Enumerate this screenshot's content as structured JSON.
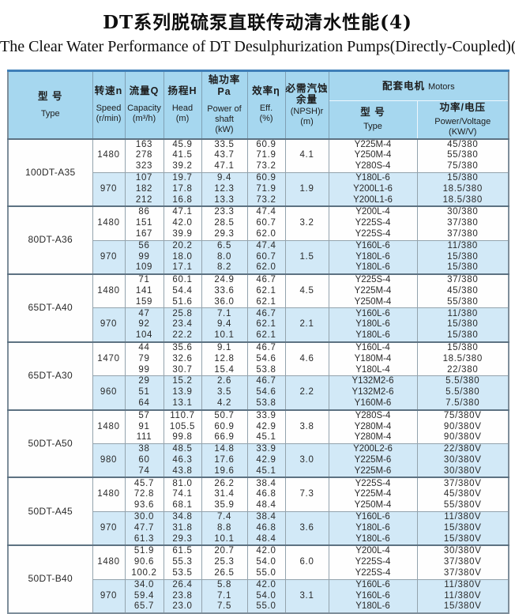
{
  "page": {
    "title_zh": "DT系列脱硫泵直联传动清水性能(4)",
    "title_en": "The Clear Water Performance of DT Desulphurization Pumps(Directly-Coupled)(4)"
  },
  "colors": {
    "table_top_border": "#3f7fb8",
    "header_bg": "#a6d7ef",
    "alt_row_bg": "#d2e9f7",
    "grid_line": "#93a3ad"
  },
  "table": {
    "header": {
      "type": {
        "zh": "型 号",
        "en": "Type"
      },
      "speed": {
        "zh": "转速n",
        "en": "Speed",
        "unit": "(r/min)"
      },
      "capacity": {
        "zh": "流量Q",
        "en": "Capacity",
        "unit": "(m³/h)"
      },
      "head": {
        "zh": "扬程H",
        "en": "Head",
        "unit": "(m)"
      },
      "power": {
        "zh": "轴功率Pa",
        "en": "Power of",
        "en2": "shaft",
        "unit": "(kW)"
      },
      "eff": {
        "zh": "效率η",
        "en": "Eff.",
        "unit": "(%)"
      },
      "npsh": {
        "zh1": "必需汽蚀",
        "zh2": "余量",
        "en": "(NPSH)r",
        "unit": "(m)"
      },
      "motors": {
        "zh": "配套电机",
        "en": "Motors"
      },
      "motor_type": {
        "zh": "型 号",
        "en": "Type"
      },
      "motor_power": {
        "zh": "功率/电压",
        "en": "Power/Voltage",
        "unit": "(KW/V)"
      }
    },
    "groups": [
      {
        "model": "100DT-A35",
        "speeds": [
          {
            "speed": "1480",
            "npsh": "4.1",
            "rows": [
              {
                "q": "163",
                "h": "45.9",
                "p": "33.5",
                "eff": "60.9",
                "motor": "Y225M-4",
                "pv": "45/380"
              },
              {
                "q": "278",
                "h": "41.5",
                "p": "43.7",
                "eff": "71.9",
                "motor": "Y250M-4",
                "pv": "55/380"
              },
              {
                "q": "323",
                "h": "39.2",
                "p": "47.1",
                "eff": "73.2",
                "motor": "Y280S-4",
                "pv": "75/380"
              }
            ]
          },
          {
            "speed": "970",
            "npsh": "1.9",
            "rows": [
              {
                "q": "107",
                "h": "19.7",
                "p": "9.4",
                "eff": "60.9",
                "motor": "Y180L-6",
                "pv": "15/380"
              },
              {
                "q": "182",
                "h": "17.8",
                "p": "12.3",
                "eff": "71.9",
                "motor": "Y200L1-6",
                "pv": "18.5/380"
              },
              {
                "q": "212",
                "h": "16.8",
                "p": "13.3",
                "eff": "73.2",
                "motor": "Y200L1-6",
                "pv": "18.5/380"
              }
            ]
          }
        ]
      },
      {
        "model": "80DT-A36",
        "speeds": [
          {
            "speed": "1480",
            "npsh": "3.2",
            "rows": [
              {
                "q": "86",
                "h": "47.1",
                "p": "23.3",
                "eff": "47.4",
                "motor": "Y200L-4",
                "pv": "30/380"
              },
              {
                "q": "151",
                "h": "42.0",
                "p": "28.5",
                "eff": "60.7",
                "motor": "Y225S-4",
                "pv": "37/380"
              },
              {
                "q": "167",
                "h": "39.9",
                "p": "29.3",
                "eff": "62.0",
                "motor": "Y225S-4",
                "pv": "37/380"
              }
            ]
          },
          {
            "speed": "970",
            "npsh": "1.5",
            "rows": [
              {
                "q": "56",
                "h": "20.2",
                "p": "6.5",
                "eff": "47.4",
                "motor": "Y160L-6",
                "pv": "11/380"
              },
              {
                "q": "99",
                "h": "18.0",
                "p": "8.0",
                "eff": "60.7",
                "motor": "Y180L-6",
                "pv": "15/380"
              },
              {
                "q": "109",
                "h": "17.1",
                "p": "8.2",
                "eff": "62.0",
                "motor": "Y180L-6",
                "pv": "15/380"
              }
            ]
          }
        ]
      },
      {
        "model": "65DT-A40",
        "speeds": [
          {
            "speed": "1480",
            "npsh": "4.5",
            "rows": [
              {
                "q": "71",
                "h": "60.1",
                "p": "24.9",
                "eff": "46.7",
                "motor": "Y225S-4",
                "pv": "37/380"
              },
              {
                "q": "141",
                "h": "54.4",
                "p": "33.6",
                "eff": "62.1",
                "motor": "Y225M-4",
                "pv": "45/380"
              },
              {
                "q": "159",
                "h": "51.6",
                "p": "36.0",
                "eff": "62.1",
                "motor": "Y250M-4",
                "pv": "55/380"
              }
            ]
          },
          {
            "speed": "970",
            "npsh": "2.1",
            "rows": [
              {
                "q": "47",
                "h": "25.8",
                "p": "7.1",
                "eff": "46.7",
                "motor": "Y160L-6",
                "pv": "11/380"
              },
              {
                "q": "92",
                "h": "23.4",
                "p": "9.4",
                "eff": "62.1",
                "motor": "Y180L-6",
                "pv": "15/380"
              },
              {
                "q": "104",
                "h": "22.2",
                "p": "10.1",
                "eff": "62.1",
                "motor": "Y180L-6",
                "pv": "15/380"
              }
            ]
          }
        ]
      },
      {
        "model": "65DT-A30",
        "speeds": [
          {
            "speed": "1470",
            "npsh": "4.6",
            "rows": [
              {
                "q": "44",
                "h": "35.6",
                "p": "9.1",
                "eff": "46.7",
                "motor": "Y160L-4",
                "pv": "15/380"
              },
              {
                "q": "79",
                "h": "32.6",
                "p": "12.8",
                "eff": "54.6",
                "motor": "Y180M-4",
                "pv": "18.5/380"
              },
              {
                "q": "99",
                "h": "30.7",
                "p": "15.4",
                "eff": "53.8",
                "motor": "Y180L-4",
                "pv": "22/380"
              }
            ]
          },
          {
            "speed": "960",
            "npsh": "2.2",
            "rows": [
              {
                "q": "29",
                "h": "15.2",
                "p": "2.6",
                "eff": "46.7",
                "motor": "Y132M2-6",
                "pv": "5.5/380"
              },
              {
                "q": "51",
                "h": "13.9",
                "p": "3.5",
                "eff": "54.6",
                "motor": "Y132M2-6",
                "pv": "5.5/380"
              },
              {
                "q": "64",
                "h": "13.1",
                "p": "4.2",
                "eff": "53.8",
                "motor": "Y160M-6",
                "pv": "7.5/380"
              }
            ]
          }
        ]
      },
      {
        "model": "50DT-A50",
        "speeds": [
          {
            "speed": "1480",
            "npsh": "3.8",
            "rows": [
              {
                "q": "57",
                "h": "110.7",
                "p": "50.7",
                "eff": "33.9",
                "motor": "Y280S-4",
                "pv": "75/380V"
              },
              {
                "q": "91",
                "h": "105.5",
                "p": "60.9",
                "eff": "42.9",
                "motor": "Y280M-4",
                "pv": "90/380V"
              },
              {
                "q": "111",
                "h": "99.8",
                "p": "66.9",
                "eff": "45.1",
                "motor": "Y280M-4",
                "pv": "90/380V"
              }
            ]
          },
          {
            "speed": "980",
            "npsh": "3.0",
            "rows": [
              {
                "q": "38",
                "h": "48.5",
                "p": "14.8",
                "eff": "33.9",
                "motor": "Y200L2-6",
                "pv": "22/380V"
              },
              {
                "q": "60",
                "h": "46.3",
                "p": "17.6",
                "eff": "42.9",
                "motor": "Y225M-6",
                "pv": "30/380V"
              },
              {
                "q": "74",
                "h": "43.8",
                "p": "19.6",
                "eff": "45.1",
                "motor": "Y225M-6",
                "pv": "30/380V"
              }
            ]
          }
        ]
      },
      {
        "model": "50DT-A45",
        "speeds": [
          {
            "speed": "1480",
            "npsh": "7.3",
            "rows": [
              {
                "q": "45.7",
                "h": "81.0",
                "p": "26.2",
                "eff": "38.4",
                "motor": "Y225S-4",
                "pv": "37/380V"
              },
              {
                "q": "72.8",
                "h": "74.1",
                "p": "31.4",
                "eff": "46.8",
                "motor": "Y225M-4",
                "pv": "45/380V"
              },
              {
                "q": "93.6",
                "h": "68.1",
                "p": "35.9",
                "eff": "48.4",
                "motor": "Y250M-4",
                "pv": "55/380V"
              }
            ]
          },
          {
            "speed": "970",
            "npsh": "3.6",
            "rows": [
              {
                "q": "30.0",
                "h": "34.8",
                "p": "7.4",
                "eff": "38.4",
                "motor": "Y160L-6",
                "pv": "11/380V"
              },
              {
                "q": "47.7",
                "h": "31.8",
                "p": "8.8",
                "eff": "46.8",
                "motor": "Y180L-6",
                "pv": "15/380V"
              },
              {
                "q": "61.3",
                "h": "29.3",
                "p": "10.1",
                "eff": "48.4",
                "motor": "Y180L-6",
                "pv": "15/380V"
              }
            ]
          }
        ]
      },
      {
        "model": "50DT-B40",
        "speeds": [
          {
            "speed": "1480",
            "npsh": "6.0",
            "rows": [
              {
                "q": "51.9",
                "h": "61.5",
                "p": "20.7",
                "eff": "42.0",
                "motor": "Y200L-4",
                "pv": "30/380V"
              },
              {
                "q": "90.6",
                "h": "55.3",
                "p": "25.3",
                "eff": "54.0",
                "motor": "Y225S-4",
                "pv": "37/380V"
              },
              {
                "q": "100.2",
                "h": "53.5",
                "p": "26.5",
                "eff": "55.0",
                "motor": "Y225S-4",
                "pv": "37/380V"
              }
            ]
          },
          {
            "speed": "970",
            "npsh": "3.1",
            "rows": [
              {
                "q": "34.0",
                "h": "26.4",
                "p": "5.8",
                "eff": "42.0",
                "motor": "Y160L-6",
                "pv": "11/380V"
              },
              {
                "q": "59.4",
                "h": "23.8",
                "p": "7.1",
                "eff": "54.0",
                "motor": "Y160L-6",
                "pv": "11/380V"
              },
              {
                "q": "65.7",
                "h": "23.0",
                "p": "7.5",
                "eff": "55.0",
                "motor": "Y180L-6",
                "pv": "15/380V"
              }
            ]
          }
        ]
      }
    ]
  }
}
